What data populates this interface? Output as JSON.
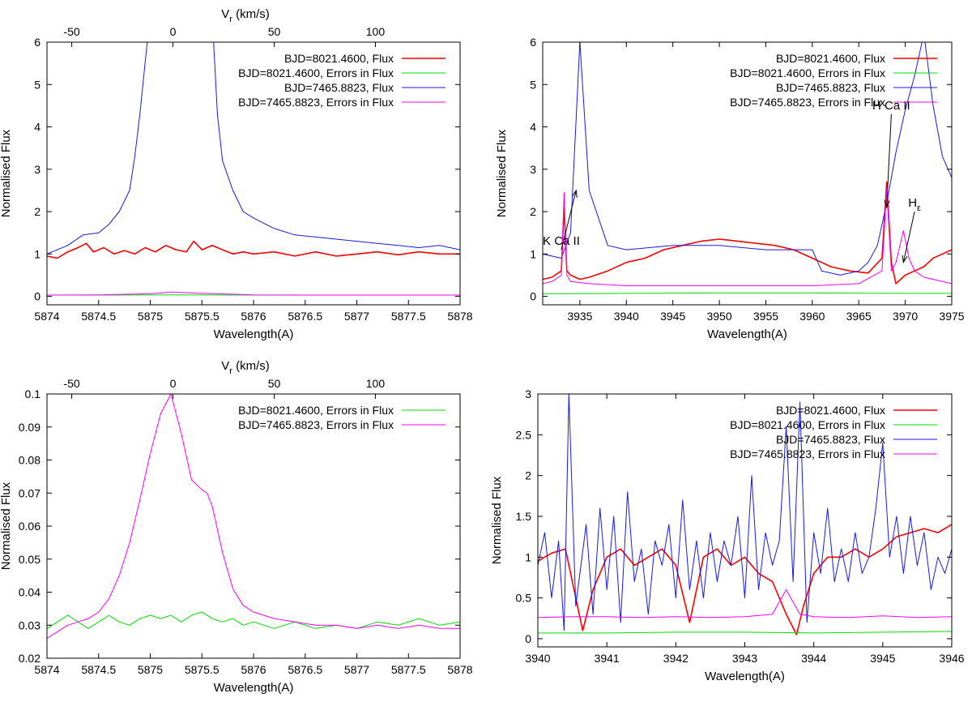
{
  "colors": {
    "flux_red": "#ff0000",
    "errors_green": "#00dd00",
    "flux_blue": "#1a1adc",
    "errors_magenta": "#ff00ff"
  },
  "chart_data": [
    {
      "type": "line",
      "panel": "top-left",
      "xlabel": "Wavelength(A)",
      "ylabel": "Normalised Flux",
      "top_axis_label": "V",
      "top_axis_label_sub": "r",
      "top_axis_label_suffix": " (km/s)",
      "xlim": [
        5874,
        5878
      ],
      "ylim": [
        -0.2,
        6
      ],
      "x_ticks": [
        "5874",
        "5874.5",
        "5875",
        "5875.5",
        "5876",
        "5876.5",
        "5877",
        "5877.5",
        "5878"
      ],
      "y_ticks": [
        "0",
        "1",
        "2",
        "3",
        "4",
        "5",
        "6"
      ],
      "top_ticks": [
        "-50",
        "0",
        "50",
        "100"
      ],
      "top_tick_wavelengths": [
        5874.24,
        5875.22,
        5876.2,
        5877.18
      ],
      "legend_position": "top-right",
      "series": [
        {
          "name": "BJD=8021.4600, Flux",
          "color": "#ff0000",
          "width": 1.6,
          "x": [
            5874.0,
            5874.1,
            5874.2,
            5874.3,
            5874.38,
            5874.45,
            5874.55,
            5874.65,
            5874.75,
            5874.85,
            5874.95,
            5875.05,
            5875.15,
            5875.25,
            5875.35,
            5875.42,
            5875.5,
            5875.6,
            5875.7,
            5875.8,
            5875.9,
            5876.0,
            5876.2,
            5876.4,
            5876.6,
            5876.8,
            5877.0,
            5877.2,
            5877.4,
            5877.6,
            5877.8,
            5878.0
          ],
          "y": [
            0.95,
            0.9,
            1.05,
            1.15,
            1.25,
            1.05,
            1.15,
            1.0,
            1.08,
            1.0,
            1.15,
            1.05,
            1.2,
            1.1,
            1.05,
            1.3,
            1.1,
            1.2,
            1.1,
            1.0,
            1.05,
            1.0,
            1.05,
            0.95,
            1.05,
            0.95,
            1.0,
            1.05,
            0.98,
            1.05,
            1.0,
            1.0
          ]
        },
        {
          "name": "BJD=8021.4600, Errors in Flux",
          "color": "#00dd00",
          "width": 1,
          "x": [
            5874.0,
            5874.5,
            5875.0,
            5875.2,
            5875.5,
            5876.0,
            5876.5,
            5877.0,
            5877.5,
            5878.0
          ],
          "y": [
            0.03,
            0.03,
            0.032,
            0.035,
            0.032,
            0.03,
            0.03,
            0.03,
            0.03,
            0.03
          ]
        },
        {
          "name": "BJD=7465.8823, Flux",
          "color": "#1a1adc",
          "width": 1,
          "x": [
            5874.0,
            5874.2,
            5874.35,
            5874.5,
            5874.6,
            5874.7,
            5874.8,
            5874.85,
            5874.9,
            5874.95,
            5874.98,
            5875.0,
            5875.6,
            5875.65,
            5875.7,
            5875.8,
            5875.9,
            5876.0,
            5876.2,
            5876.4,
            5876.6,
            5876.8,
            5877.0,
            5877.2,
            5877.4,
            5877.6,
            5877.8,
            5878.0
          ],
          "y": [
            1.0,
            1.2,
            1.45,
            1.5,
            1.7,
            2.0,
            2.5,
            3.3,
            4.3,
            5.5,
            6.2,
            6.6,
            6.6,
            4.3,
            3.2,
            2.5,
            2.0,
            1.85,
            1.6,
            1.45,
            1.4,
            1.35,
            1.3,
            1.25,
            1.2,
            1.15,
            1.2,
            1.1
          ]
        },
        {
          "name": "BJD=7465.8823, Errors in Flux",
          "color": "#ff00ff",
          "width": 1,
          "x": [
            5874.0,
            5874.5,
            5875.0,
            5875.2,
            5875.5,
            5876.0,
            5876.5,
            5877.0,
            5877.5,
            5878.0
          ],
          "y": [
            0.03,
            0.035,
            0.06,
            0.1,
            0.07,
            0.035,
            0.03,
            0.03,
            0.03,
            0.03
          ]
        }
      ]
    },
    {
      "type": "line",
      "panel": "top-right",
      "xlabel": "Wavelength(A)",
      "ylabel": "Normalised Flux",
      "xlim": [
        3931,
        3975
      ],
      "ylim": [
        -0.2,
        6
      ],
      "x_ticks": [
        "3935",
        "3940",
        "3945",
        "3950",
        "3955",
        "3960",
        "3965",
        "3970",
        "3975"
      ],
      "x_tick_values": [
        3935,
        3940,
        3945,
        3950,
        3955,
        3960,
        3965,
        3970,
        3975
      ],
      "y_ticks": [
        "0",
        "1",
        "2",
        "3",
        "4",
        "5",
        "6"
      ],
      "legend_position": "top-right",
      "annotations": [
        {
          "text": "H Ca II",
          "at": [
            3968.0,
            2.1
          ],
          "from": [
            3968.5,
            4.3
          ]
        },
        {
          "text": "H",
          "sub": "ε",
          "at": [
            3969.8,
            0.8
          ],
          "from": [
            3971.0,
            2.0
          ]
        },
        {
          "text": "K Ca II",
          "at": [
            3934.6,
            2.5
          ],
          "from": [
            3933.0,
            1.1
          ]
        }
      ],
      "series": [
        {
          "name": "BJD=8021.4600, Flux",
          "color": "#ff0000",
          "width": 1.6,
          "x": [
            3931,
            3932,
            3933,
            3933.3,
            3933.6,
            3934,
            3935,
            3936,
            3938,
            3940,
            3942,
            3944,
            3946,
            3948,
            3950,
            3952,
            3954,
            3956,
            3958,
            3960,
            3961,
            3962,
            3964,
            3966,
            3967.5,
            3968.0,
            3968.5,
            3969,
            3970,
            3971,
            3972,
            3973,
            3974,
            3975
          ],
          "y": [
            0.4,
            0.45,
            0.6,
            2.1,
            0.6,
            0.5,
            0.4,
            0.45,
            0.6,
            0.8,
            0.9,
            1.1,
            1.2,
            1.3,
            1.35,
            1.3,
            1.25,
            1.2,
            1.1,
            0.9,
            0.8,
            0.7,
            0.6,
            0.55,
            0.9,
            2.7,
            0.8,
            0.3,
            0.5,
            0.6,
            0.7,
            0.9,
            1.0,
            1.1
          ]
        },
        {
          "name": "BJD=8021.4600, Errors in Flux",
          "color": "#00dd00",
          "width": 1,
          "x": [
            3931,
            3940,
            3950,
            3960,
            3970,
            3975
          ],
          "y": [
            0.06,
            0.07,
            0.08,
            0.08,
            0.07,
            0.07
          ]
        },
        {
          "name": "BJD=7465.8823, Flux",
          "color": "#1a1adc",
          "width": 1,
          "x": [
            3931,
            3933,
            3934,
            3935,
            3936,
            3938,
            3940,
            3945,
            3950,
            3955,
            3960,
            3961,
            3963,
            3965,
            3966,
            3967,
            3968,
            3969,
            3970,
            3971,
            3972,
            3973,
            3974,
            3975
          ],
          "y": [
            1.0,
            0.9,
            1.5,
            6.0,
            2.5,
            1.2,
            1.1,
            1.2,
            1.2,
            1.1,
            1.1,
            0.6,
            0.5,
            0.6,
            0.8,
            1.2,
            2.2,
            3.4,
            4.4,
            5.2,
            6.2,
            4.5,
            3.3,
            2.8
          ]
        },
        {
          "name": "BJD=7465.8823, Errors in Flux",
          "color": "#ff00ff",
          "width": 1,
          "x": [
            3931,
            3932,
            3933,
            3933.3,
            3933.6,
            3934,
            3936,
            3940,
            3950,
            3960,
            3965,
            3967.5,
            3968.0,
            3968.5,
            3969,
            3969.8,
            3970.4,
            3971,
            3972,
            3975
          ],
          "y": [
            0.3,
            0.35,
            0.5,
            2.45,
            0.5,
            0.35,
            0.3,
            0.25,
            0.25,
            0.25,
            0.3,
            0.6,
            2.55,
            0.6,
            0.8,
            1.55,
            0.9,
            0.6,
            0.45,
            0.3
          ]
        }
      ]
    },
    {
      "type": "line",
      "panel": "bottom-left",
      "xlabel": "Wavelength(A)",
      "ylabel": "Normalised Flux",
      "top_axis_label": "V",
      "top_axis_label_sub": "r",
      "top_axis_label_suffix": " (km/s)",
      "xlim": [
        5874,
        5878
      ],
      "ylim": [
        0.02,
        0.1
      ],
      "x_ticks": [
        "5874",
        "5874.5",
        "5875",
        "5875.5",
        "5876",
        "5876.5",
        "5877",
        "5877.5",
        "5878"
      ],
      "y_ticks": [
        "0.02",
        "0.03",
        "0.04",
        "0.05",
        "0.06",
        "0.07",
        "0.08",
        "0.09",
        "0.1"
      ],
      "top_ticks": [
        "-50",
        "0",
        "50",
        "100"
      ],
      "top_tick_wavelengths": [
        5874.24,
        5875.22,
        5876.2,
        5877.18
      ],
      "legend_position": "top-right",
      "series": [
        {
          "name": "BJD=8021.4600, Errors in Flux",
          "color": "#00dd00",
          "width": 1,
          "x": [
            5874.0,
            5874.1,
            5874.2,
            5874.3,
            5874.4,
            5874.5,
            5874.6,
            5874.7,
            5874.8,
            5874.9,
            5875.0,
            5875.1,
            5875.2,
            5875.3,
            5875.4,
            5875.5,
            5875.6,
            5875.7,
            5875.8,
            5875.9,
            5876.0,
            5876.2,
            5876.4,
            5876.6,
            5876.8,
            5877.0,
            5877.2,
            5877.4,
            5877.6,
            5877.8,
            5878.0
          ],
          "y": [
            0.029,
            0.031,
            0.033,
            0.031,
            0.029,
            0.031,
            0.033,
            0.031,
            0.03,
            0.032,
            0.033,
            0.032,
            0.033,
            0.031,
            0.033,
            0.034,
            0.032,
            0.031,
            0.032,
            0.03,
            0.031,
            0.029,
            0.031,
            0.029,
            0.03,
            0.029,
            0.031,
            0.03,
            0.032,
            0.03,
            0.031
          ]
        },
        {
          "name": "BJD=7465.8823, Errors in Flux",
          "color": "#ff00ff",
          "width": 1,
          "x": [
            5874.0,
            5874.1,
            5874.2,
            5874.3,
            5874.4,
            5874.5,
            5874.6,
            5874.7,
            5874.8,
            5874.9,
            5875.0,
            5875.1,
            5875.2,
            5875.3,
            5875.4,
            5875.5,
            5875.55,
            5875.6,
            5875.7,
            5875.8,
            5875.9,
            5876.0,
            5876.2,
            5876.4,
            5876.6,
            5876.8,
            5877.0,
            5877.2,
            5877.4,
            5877.6,
            5877.8,
            5878.0
          ],
          "y": [
            0.026,
            0.028,
            0.03,
            0.031,
            0.032,
            0.034,
            0.038,
            0.045,
            0.055,
            0.068,
            0.082,
            0.094,
            0.1,
            0.088,
            0.074,
            0.071,
            0.07,
            0.066,
            0.052,
            0.041,
            0.036,
            0.034,
            0.032,
            0.031,
            0.03,
            0.03,
            0.029,
            0.03,
            0.029,
            0.03,
            0.029,
            0.029
          ]
        }
      ]
    },
    {
      "type": "line",
      "panel": "bottom-right",
      "xlabel": "Wavelength(A)",
      "ylabel": "Normalised Flux",
      "xlim": [
        3940,
        3946
      ],
      "ylim": [
        -0.1,
        3
      ],
      "x_ticks": [
        "3940",
        "3941",
        "3942",
        "3943",
        "3944",
        "3945",
        "3946"
      ],
      "x_tick_values": [
        3940,
        3941,
        3942,
        3943,
        3944,
        3945,
        3946
      ],
      "y_ticks": [
        "0",
        "0.5",
        "1",
        "1.5",
        "2",
        "2.5",
        "3"
      ],
      "y_tick_values": [
        0,
        0.5,
        1,
        1.5,
        2,
        2.5,
        3
      ],
      "legend_position": "top-right",
      "series": [
        {
          "name": "BJD=8021.4600, Flux",
          "color": "#ff0000",
          "width": 1.6,
          "x": [
            3940.0,
            3940.2,
            3940.4,
            3940.55,
            3940.65,
            3940.8,
            3941.0,
            3941.2,
            3941.4,
            3941.6,
            3941.8,
            3942.0,
            3942.2,
            3942.4,
            3942.6,
            3942.8,
            3943.0,
            3943.2,
            3943.4,
            3943.6,
            3943.75,
            3943.85,
            3944.0,
            3944.2,
            3944.4,
            3944.6,
            3944.8,
            3945.0,
            3945.2,
            3945.4,
            3945.6,
            3945.8,
            3946.0
          ],
          "y": [
            0.95,
            1.05,
            1.1,
            0.5,
            0.1,
            0.6,
            1.0,
            1.1,
            0.9,
            1.0,
            1.1,
            0.9,
            0.2,
            1.0,
            1.1,
            0.9,
            1.0,
            0.8,
            0.7,
            0.3,
            0.05,
            0.4,
            0.8,
            1.0,
            1.0,
            1.1,
            1.0,
            1.1,
            1.25,
            1.3,
            1.35,
            1.3,
            1.4
          ]
        },
        {
          "name": "BJD=8021.4600, Errors in Flux",
          "color": "#00dd00",
          "width": 1,
          "x": [
            3940.0,
            3941.0,
            3942.0,
            3943.0,
            3944.0,
            3945.0,
            3946.0
          ],
          "y": [
            0.07,
            0.07,
            0.08,
            0.08,
            0.07,
            0.08,
            0.09
          ]
        },
        {
          "name": "BJD=7465.8823, Flux",
          "color": "#1a1adc",
          "width": 1,
          "x": [
            3940.0,
            3940.1,
            3940.2,
            3940.3,
            3940.38,
            3940.45,
            3940.55,
            3940.7,
            3940.8,
            3940.9,
            3941.0,
            3941.1,
            3941.2,
            3941.3,
            3941.4,
            3941.5,
            3941.6,
            3941.7,
            3941.8,
            3941.9,
            3942.0,
            3942.1,
            3942.2,
            3942.3,
            3942.4,
            3942.5,
            3942.6,
            3942.7,
            3942.8,
            3942.9,
            3943.0,
            3943.1,
            3943.2,
            3943.3,
            3943.4,
            3943.5,
            3943.6,
            3943.7,
            3943.8,
            3943.9,
            3944.0,
            3944.1,
            3944.2,
            3944.3,
            3944.4,
            3944.5,
            3944.6,
            3944.7,
            3944.8,
            3944.9,
            3945.0,
            3945.1,
            3945.2,
            3945.3,
            3945.4,
            3945.5,
            3945.6,
            3945.7,
            3945.8,
            3945.9,
            3946.0
          ],
          "y": [
            0.9,
            1.3,
            0.5,
            1.2,
            0.1,
            3.0,
            0.4,
            1.4,
            0.3,
            1.6,
            0.6,
            1.5,
            0.2,
            1.8,
            0.7,
            1.1,
            0.3,
            1.2,
            0.9,
            1.4,
            0.5,
            1.7,
            0.6,
            1.2,
            0.5,
            1.3,
            0.7,
            1.2,
            0.9,
            1.5,
            0.5,
            2.0,
            0.6,
            1.3,
            0.9,
            1.2,
            2.6,
            0.7,
            2.9,
            0.2,
            1.3,
            0.8,
            1.6,
            0.7,
            1.1,
            0.7,
            1.3,
            0.8,
            1.0,
            1.6,
            2.4,
            1.0,
            1.5,
            0.8,
            1.5,
            0.9,
            1.3,
            0.6,
            1.0,
            0.8,
            1.1
          ]
        },
        {
          "name": "BJD=7465.8823, Errors in Flux",
          "color": "#ff00ff",
          "width": 1,
          "x": [
            3940.0,
            3940.5,
            3941.0,
            3941.5,
            3942.0,
            3942.5,
            3943.0,
            3943.4,
            3943.6,
            3943.8,
            3944.0,
            3944.5,
            3945.0,
            3945.5,
            3946.0
          ],
          "y": [
            0.26,
            0.27,
            0.27,
            0.26,
            0.27,
            0.26,
            0.27,
            0.3,
            0.6,
            0.3,
            0.27,
            0.26,
            0.28,
            0.26,
            0.27
          ]
        }
      ]
    }
  ]
}
